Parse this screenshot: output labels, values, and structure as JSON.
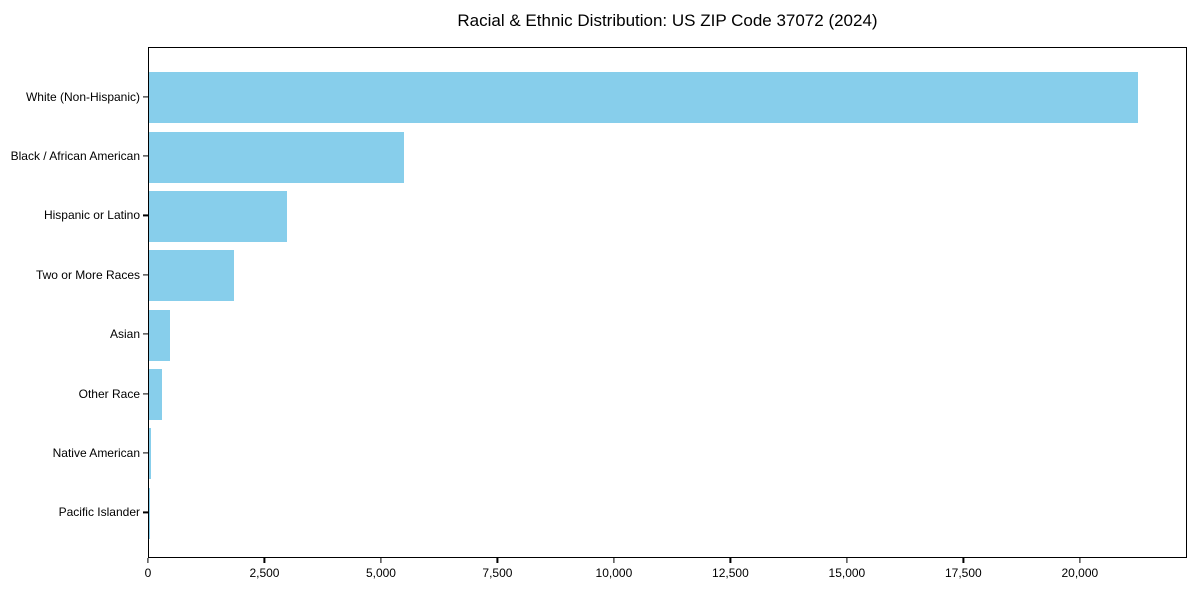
{
  "chart_data": {
    "type": "bar",
    "orientation": "horizontal",
    "title": "Racial & Ethnic Distribution: US ZIP Code 37072 (2024)",
    "categories": [
      "White (Non-Hispanic)",
      "Black / African American",
      "Hispanic or Latino",
      "Two or More Races",
      "Asian",
      "Other Race",
      "Native American",
      "Pacific Islander"
    ],
    "values": [
      21220,
      5470,
      2960,
      1830,
      460,
      280,
      40,
      10
    ],
    "bar_color": "#87CEEB",
    "axis_color": "#000000",
    "text_color": "#000000",
    "background_color": "#ffffff",
    "xlabel": "",
    "ylabel": "",
    "xlim": [
      0,
      22300
    ],
    "xticks": [
      0,
      2500,
      5000,
      7500,
      10000,
      12500,
      15000,
      17500,
      20000
    ],
    "xtick_labels": [
      "0",
      "2,500",
      "5,000",
      "7,500",
      "10,000",
      "12,500",
      "15,000",
      "17,500",
      "20,000"
    ],
    "grid": false,
    "legend": "none"
  }
}
